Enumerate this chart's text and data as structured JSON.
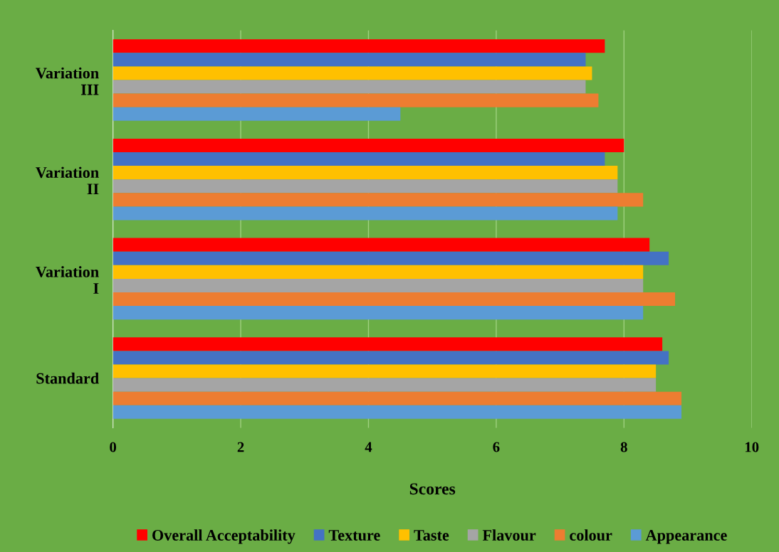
{
  "chart_data": {
    "type": "bar",
    "orientation": "horizontal",
    "xlabel": "Scores",
    "categories": [
      "Variation\nIII",
      "Variation\nII",
      "Variation\nI",
      "Standard"
    ],
    "series": [
      {
        "name": "Overall Acceptability",
        "color": "#ff0000",
        "values": [
          7.7,
          8.0,
          8.4,
          8.6
        ]
      },
      {
        "name": "Texture",
        "color": "#4472c4",
        "values": [
          7.4,
          7.7,
          8.7,
          8.7
        ]
      },
      {
        "name": "Taste",
        "color": "#ffc000",
        "values": [
          7.5,
          7.9,
          8.3,
          8.5
        ]
      },
      {
        "name": "Flavour",
        "color": "#a5a5a5",
        "values": [
          7.4,
          7.9,
          8.3,
          8.5
        ]
      },
      {
        "name": "colour",
        "color": "#ed7d31",
        "values": [
          7.6,
          8.3,
          8.8,
          8.9
        ]
      },
      {
        "name": "Appearance",
        "color": "#5b9bd5",
        "values": [
          4.5,
          7.9,
          8.3,
          8.9
        ]
      }
    ],
    "xlim": [
      0,
      10
    ],
    "xticks": [
      0,
      2,
      4,
      6,
      8,
      10
    ],
    "grid": "x",
    "legend": "bottom"
  }
}
